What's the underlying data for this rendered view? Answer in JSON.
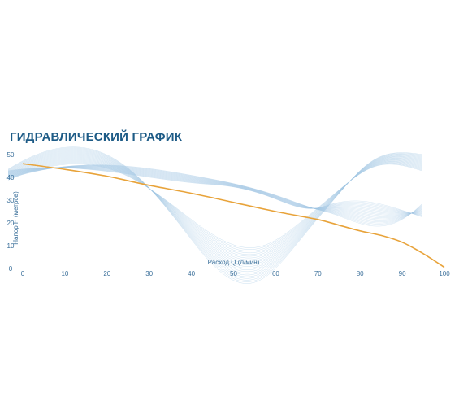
{
  "chart_data": {
    "type": "line",
    "title": "ГИДРАВЛИЧЕСКИЙ ГРАФИК",
    "xlabel": "Расход Q (л/мин)",
    "ylabel": "Напор Н (метров)",
    "xlim": [
      0,
      100
    ],
    "ylim": [
      0,
      50
    ],
    "x_ticks": [
      "0",
      "10",
      "20",
      "30",
      "40",
      "50",
      "60",
      "70",
      "80",
      "90",
      "100"
    ],
    "y_ticks": [
      "0",
      "10",
      "20",
      "30",
      "40",
      "50"
    ],
    "grid": false,
    "series": [
      {
        "x": [
          0,
          10,
          20,
          25,
          30,
          40,
          50,
          60,
          70,
          75,
          80,
          85,
          90,
          95,
          100
        ],
        "values": [
          46,
          43.5,
          40.5,
          38.5,
          36.5,
          33,
          29,
          25,
          21.5,
          19,
          16.5,
          14.5,
          11.5,
          6.5,
          0.5
        ],
        "color": "#e8a33a"
      }
    ],
    "decoration_color": "#9ec4e2"
  }
}
